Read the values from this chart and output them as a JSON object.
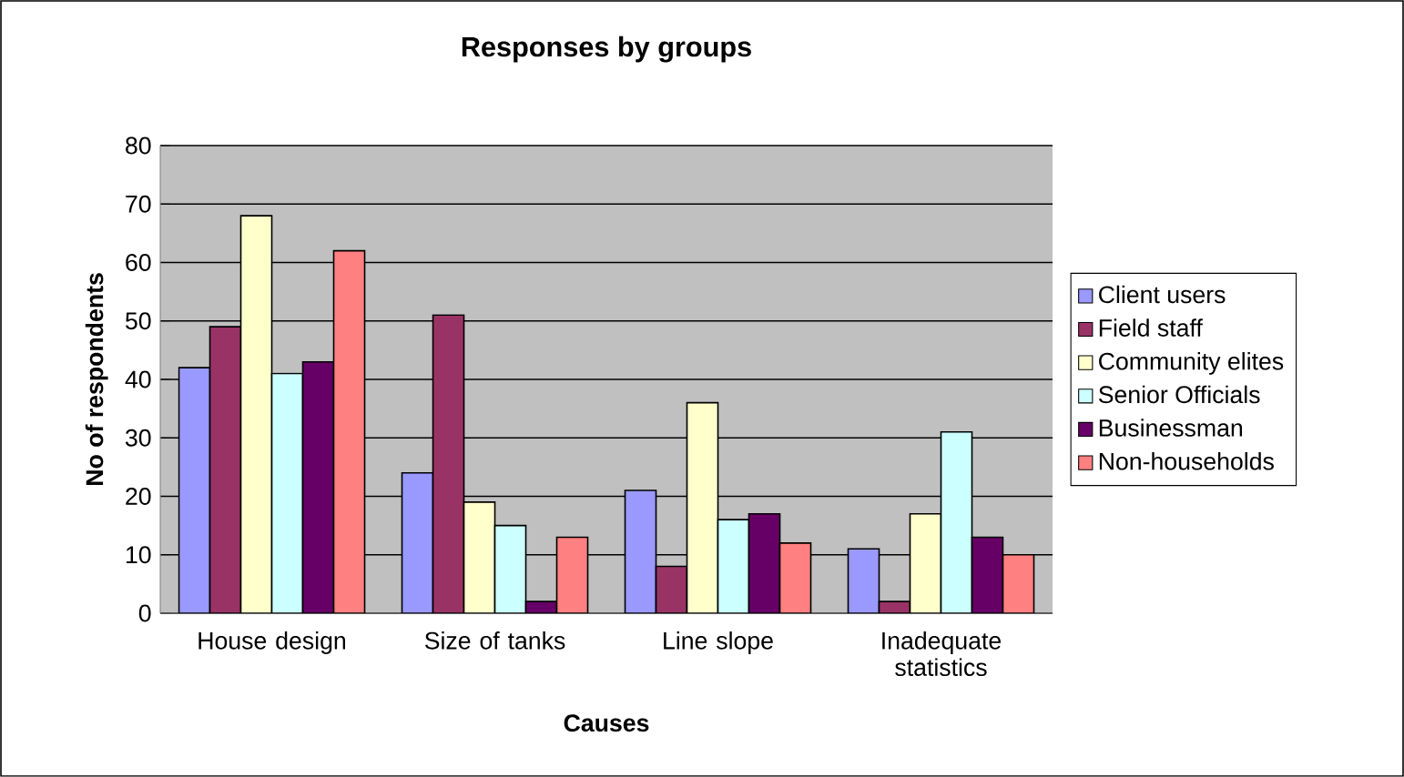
{
  "chart_data": {
    "type": "bar",
    "title": "Responses by groups",
    "xlabel": "Causes",
    "ylabel": "No of respondents",
    "categories": [
      "House design",
      "Size of tanks",
      "Line slope",
      "Inadequate statistics"
    ],
    "series": [
      {
        "name": "Client users",
        "color": "#9999ff",
        "values": [
          42,
          24,
          21,
          11
        ]
      },
      {
        "name": "Field staff",
        "color": "#993366",
        "values": [
          49,
          51,
          8,
          2
        ]
      },
      {
        "name": "Community elites",
        "color": "#ffffcc",
        "values": [
          68,
          19,
          36,
          17
        ]
      },
      {
        "name": "Senior Officials",
        "color": "#ccffff",
        "values": [
          41,
          15,
          16,
          31
        ]
      },
      {
        "name": "Businessman",
        "color": "#660066",
        "values": [
          43,
          2,
          17,
          13
        ]
      },
      {
        "name": "Non-households",
        "color": "#ff8080",
        "values": [
          62,
          13,
          12,
          10
        ]
      }
    ],
    "ylim": [
      0,
      80
    ],
    "yticks": [
      0,
      10,
      20,
      30,
      40,
      50,
      60,
      70,
      80
    ],
    "grid": "y",
    "legend": "right"
  }
}
